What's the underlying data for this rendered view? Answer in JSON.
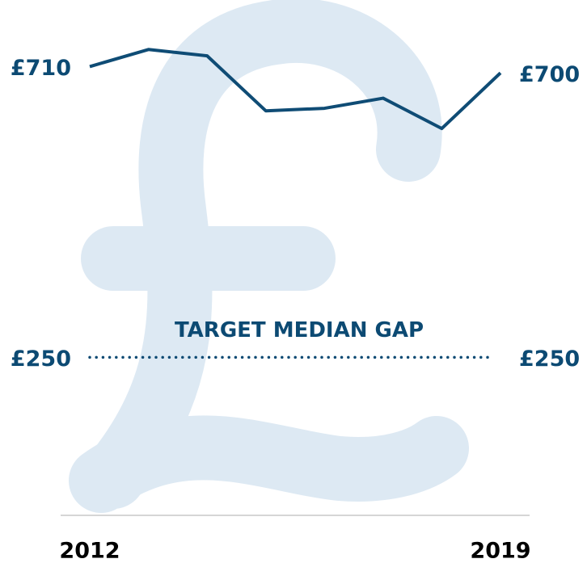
{
  "chart_data": {
    "type": "line",
    "x": [
      2012,
      2013,
      2014,
      2015,
      2016,
      2017,
      2018,
      2019
    ],
    "values": [
      710,
      737,
      727,
      640,
      644,
      660,
      612,
      700
    ],
    "value_labels": [
      "£710",
      null,
      null,
      null,
      null,
      null,
      null,
      "£700"
    ],
    "color": "#0f4c75",
    "xlim": [
      2012,
      2019
    ],
    "xticks": [
      2012,
      2019
    ],
    "ylim": [
      0,
      760
    ],
    "target": {
      "value": 250,
      "label": "£250",
      "annotation": "TARGET MEDIAN GAP"
    }
  }
}
